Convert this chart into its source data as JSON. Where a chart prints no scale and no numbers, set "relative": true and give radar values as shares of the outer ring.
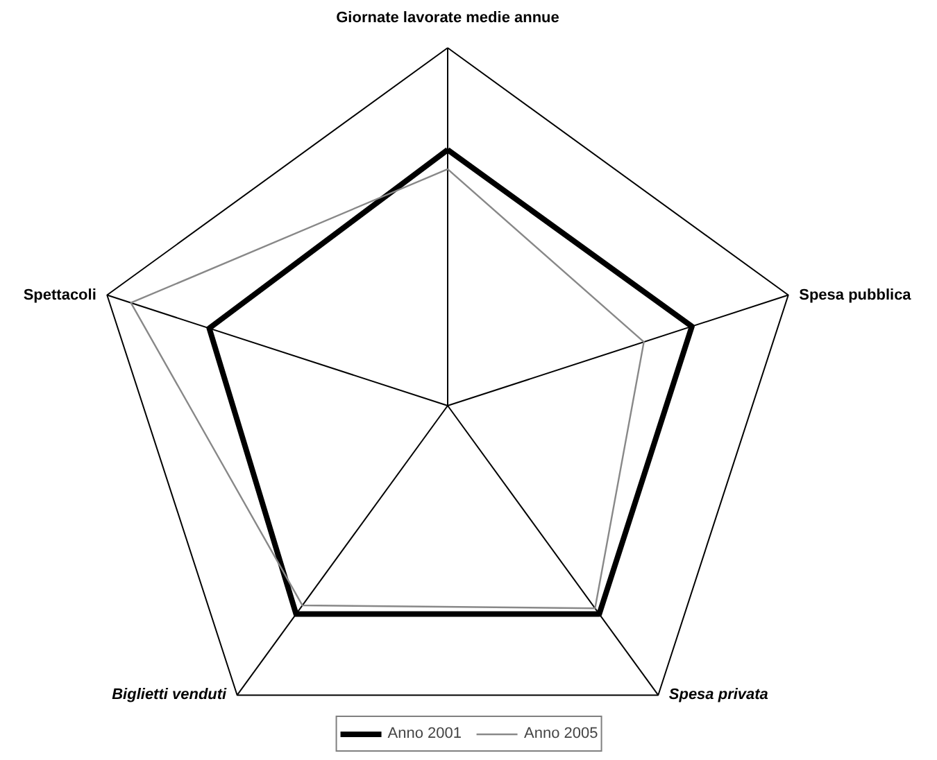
{
  "chart_data": {
    "type": "radar",
    "relative": true,
    "legend": "bottom",
    "grid": true,
    "categories": [
      "Giornate lavorate medie annue",
      "Spesa pubblica",
      "Spesa privata",
      "Biglietti venduti",
      "Spettacoli"
    ],
    "series": [
      {
        "name": "Anno 2001",
        "color": "#000000",
        "values": [
          0.715,
          0.717,
          0.72,
          0.72,
          0.7
        ]
      },
      {
        "name": "Anno 2005",
        "color": "#888888",
        "values": [
          0.661,
          0.576,
          0.7,
          0.69,
          0.93
        ]
      }
    ]
  }
}
